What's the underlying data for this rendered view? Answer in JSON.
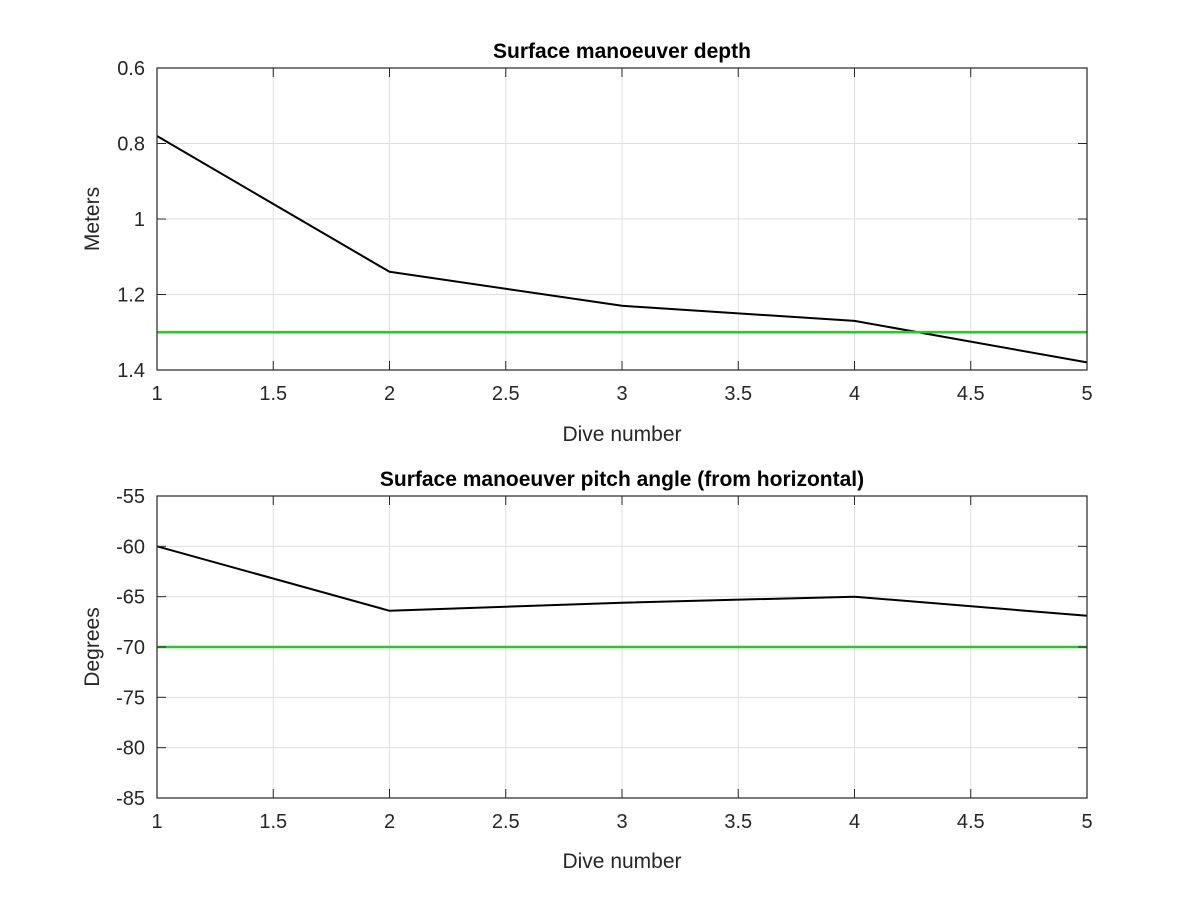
{
  "chart_data": [
    {
      "type": "line",
      "title": "Surface manoeuver depth",
      "xlabel": "Dive number",
      "ylabel": "Meters",
      "xlim": [
        1,
        5
      ],
      "ylim": [
        0.6,
        1.4
      ],
      "y_reversed": true,
      "grid": true,
      "x_ticks": [
        1,
        1.5,
        2,
        2.5,
        3,
        3.5,
        4,
        4.5,
        5
      ],
      "x_tick_labels": [
        "1",
        "1.5",
        "2",
        "2.5",
        "3",
        "3.5",
        "4",
        "4.5",
        "5"
      ],
      "y_ticks": [
        0.6,
        0.8,
        1,
        1.2,
        1.4
      ],
      "y_tick_labels": [
        "0.6",
        "0.8",
        "1",
        "1.2",
        "1.4"
      ],
      "series": [
        {
          "x": [
            1,
            2,
            3,
            4,
            5
          ],
          "y": [
            0.78,
            1.14,
            1.23,
            1.27,
            1.38
          ],
          "color": "#000000"
        },
        {
          "x": [
            1,
            5
          ],
          "y": [
            1.3,
            1.3
          ],
          "color": "#22cc22"
        }
      ]
    },
    {
      "type": "line",
      "title": "Surface manoeuver pitch angle (from horizontal)",
      "xlabel": "Dive number",
      "ylabel": "Degrees",
      "xlim": [
        1,
        5
      ],
      "ylim": [
        -85,
        -55
      ],
      "y_reversed": false,
      "grid": true,
      "x_ticks": [
        1,
        1.5,
        2,
        2.5,
        3,
        3.5,
        4,
        4.5,
        5
      ],
      "x_tick_labels": [
        "1",
        "1.5",
        "2",
        "2.5",
        "3",
        "3.5",
        "4",
        "4.5",
        "5"
      ],
      "y_ticks": [
        -85,
        -80,
        -75,
        -70,
        -65,
        -60,
        -55
      ],
      "y_tick_labels": [
        "-85",
        "-80",
        "-75",
        "-70",
        "-65",
        "-60",
        "-55"
      ],
      "series": [
        {
          "x": [
            1,
            2,
            3,
            4,
            5
          ],
          "y": [
            -60,
            -66.4,
            -65.6,
            -65.0,
            -66.9
          ],
          "color": "#000000"
        },
        {
          "x": [
            1,
            5
          ],
          "y": [
            -70,
            -70
          ],
          "color": "#22cc22"
        }
      ]
    }
  ]
}
